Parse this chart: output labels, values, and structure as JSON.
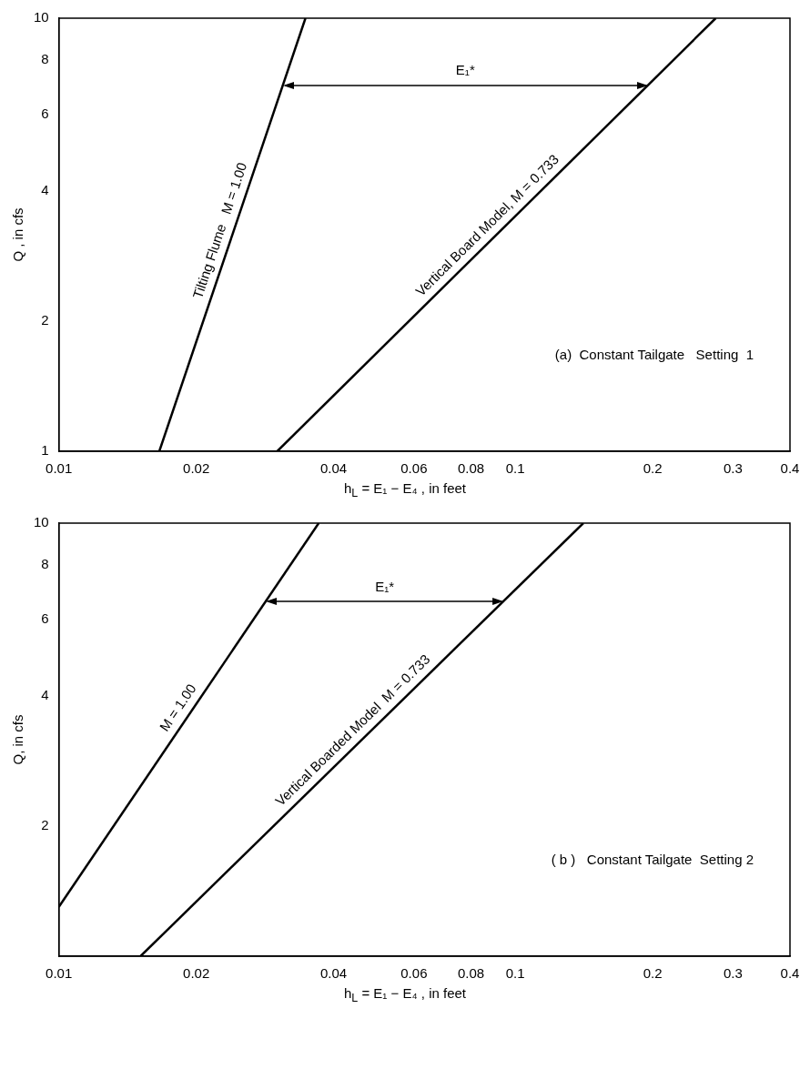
{
  "chart_data": [
    {
      "type": "line",
      "log": "xy",
      "xlim": [
        0.01,
        0.4
      ],
      "ylim": [
        1,
        10
      ],
      "xticks": [
        0.01,
        0.02,
        0.04,
        0.06,
        0.08,
        0.1,
        0.2,
        0.3,
        0.4
      ],
      "yticks": [
        1,
        2,
        4,
        6,
        8,
        10
      ],
      "xlabel": "h$_{L}$ = E₁ − E₄ ,  in feet",
      "ylabel": "Q , in cfs",
      "series": [
        {
          "name": "Tilting Flume   M = 1.00",
          "color": "#000000",
          "x": [
            0.0166,
            0.0347
          ],
          "values": [
            1,
            10
          ]
        },
        {
          "name": "Vertical Board Model, M = 0.733",
          "color": "#000000",
          "x": [
            0.0301,
            0.275
          ],
          "values": [
            1,
            10
          ]
        }
      ],
      "ref_lines": [
        {
          "axis": "y",
          "value": 7,
          "label": "E₁*"
        }
      ],
      "annotations": [
        "(a)  Constant Tailgate   Setting  1"
      ]
    },
    {
      "type": "line",
      "log": "xy",
      "xlim": [
        0.01,
        0.4
      ],
      "ylim": [
        1,
        10
      ],
      "xticks": [
        0.01,
        0.02,
        0.04,
        0.06,
        0.08,
        0.1,
        0.2,
        0.3,
        0.4
      ],
      "yticks": [
        2,
        4,
        6,
        8,
        10
      ],
      "xlabel": "h$_{L}$ = E₁ − E₄ , in feet",
      "ylabel": "Q, in cfs",
      "series": [
        {
          "name": "M = 1.00",
          "color": "#000000",
          "x": [
            0.01,
            0.0371
          ],
          "values": [
            1.3,
            10
          ]
        },
        {
          "name": "Vertical Boarded Model  M = 0.733",
          "color": "#000000",
          "x": [
            0.0151,
            0.141
          ],
          "values": [
            1,
            10
          ]
        }
      ],
      "ref_lines": [
        {
          "axis": "y",
          "value": 6.6,
          "label": "E₁*"
        }
      ],
      "annotations": [
        "( b )   Constant Tailgate  Setting 2"
      ]
    }
  ]
}
